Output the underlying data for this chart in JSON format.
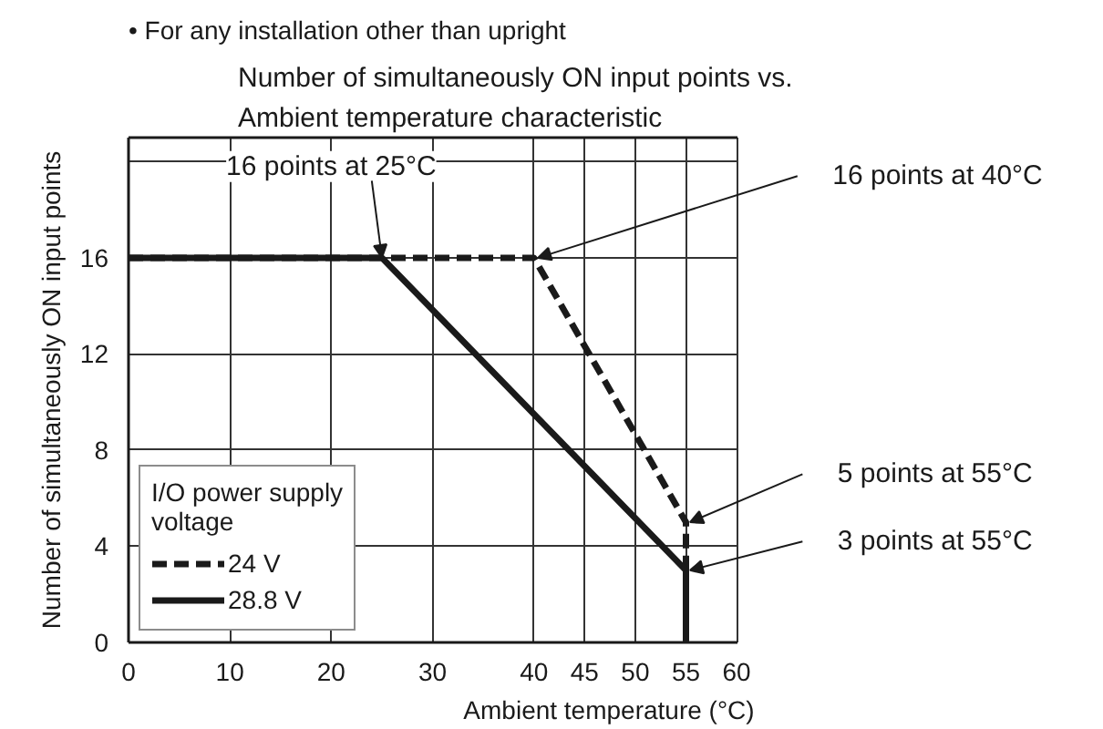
{
  "chart_data": {
    "type": "line",
    "title": "Number of simultaneously ON input points vs. Ambient temperature characteristic",
    "xlabel": "Ambient temperature (°C)",
    "ylabel": "Number of simultaneously ON input points",
    "legend_title": "I/O power supply voltage",
    "series": [
      {
        "name": "24 V",
        "color": "#1a1a1a",
        "line_style": "dashed",
        "x": [
          0,
          40,
          55,
          55
        ],
        "values": [
          16,
          16,
          5,
          0
        ]
      },
      {
        "name": "28.8 V",
        "color": "#1a1a1a",
        "line_style": "solid",
        "x": [
          0,
          25,
          55,
          55
        ],
        "values": [
          16,
          16,
          3,
          0
        ]
      }
    ],
    "xlim": [
      0,
      60
    ],
    "xticks": [
      0,
      10,
      20,
      30,
      40,
      45,
      50,
      55,
      60
    ],
    "ylim": [
      0,
      21
    ],
    "yticks": [
      0,
      4,
      8,
      12,
      16,
      {
        "value": 20,
        "label": null
      }
    ],
    "grid": true,
    "legend": "bottom left",
    "marker": "none",
    "annotations": [
      "• For any installation other than upright",
      {
        "text": "16 points at 25°C",
        "x": 25,
        "y": 16
      },
      {
        "text": "16 points at 40°C",
        "x": 40,
        "y": 16
      },
      {
        "text": "5 points at 55°C",
        "x": 55,
        "y": 5
      },
      {
        "text": "3 points at 55°C",
        "x": 55,
        "y": 3
      }
    ]
  }
}
